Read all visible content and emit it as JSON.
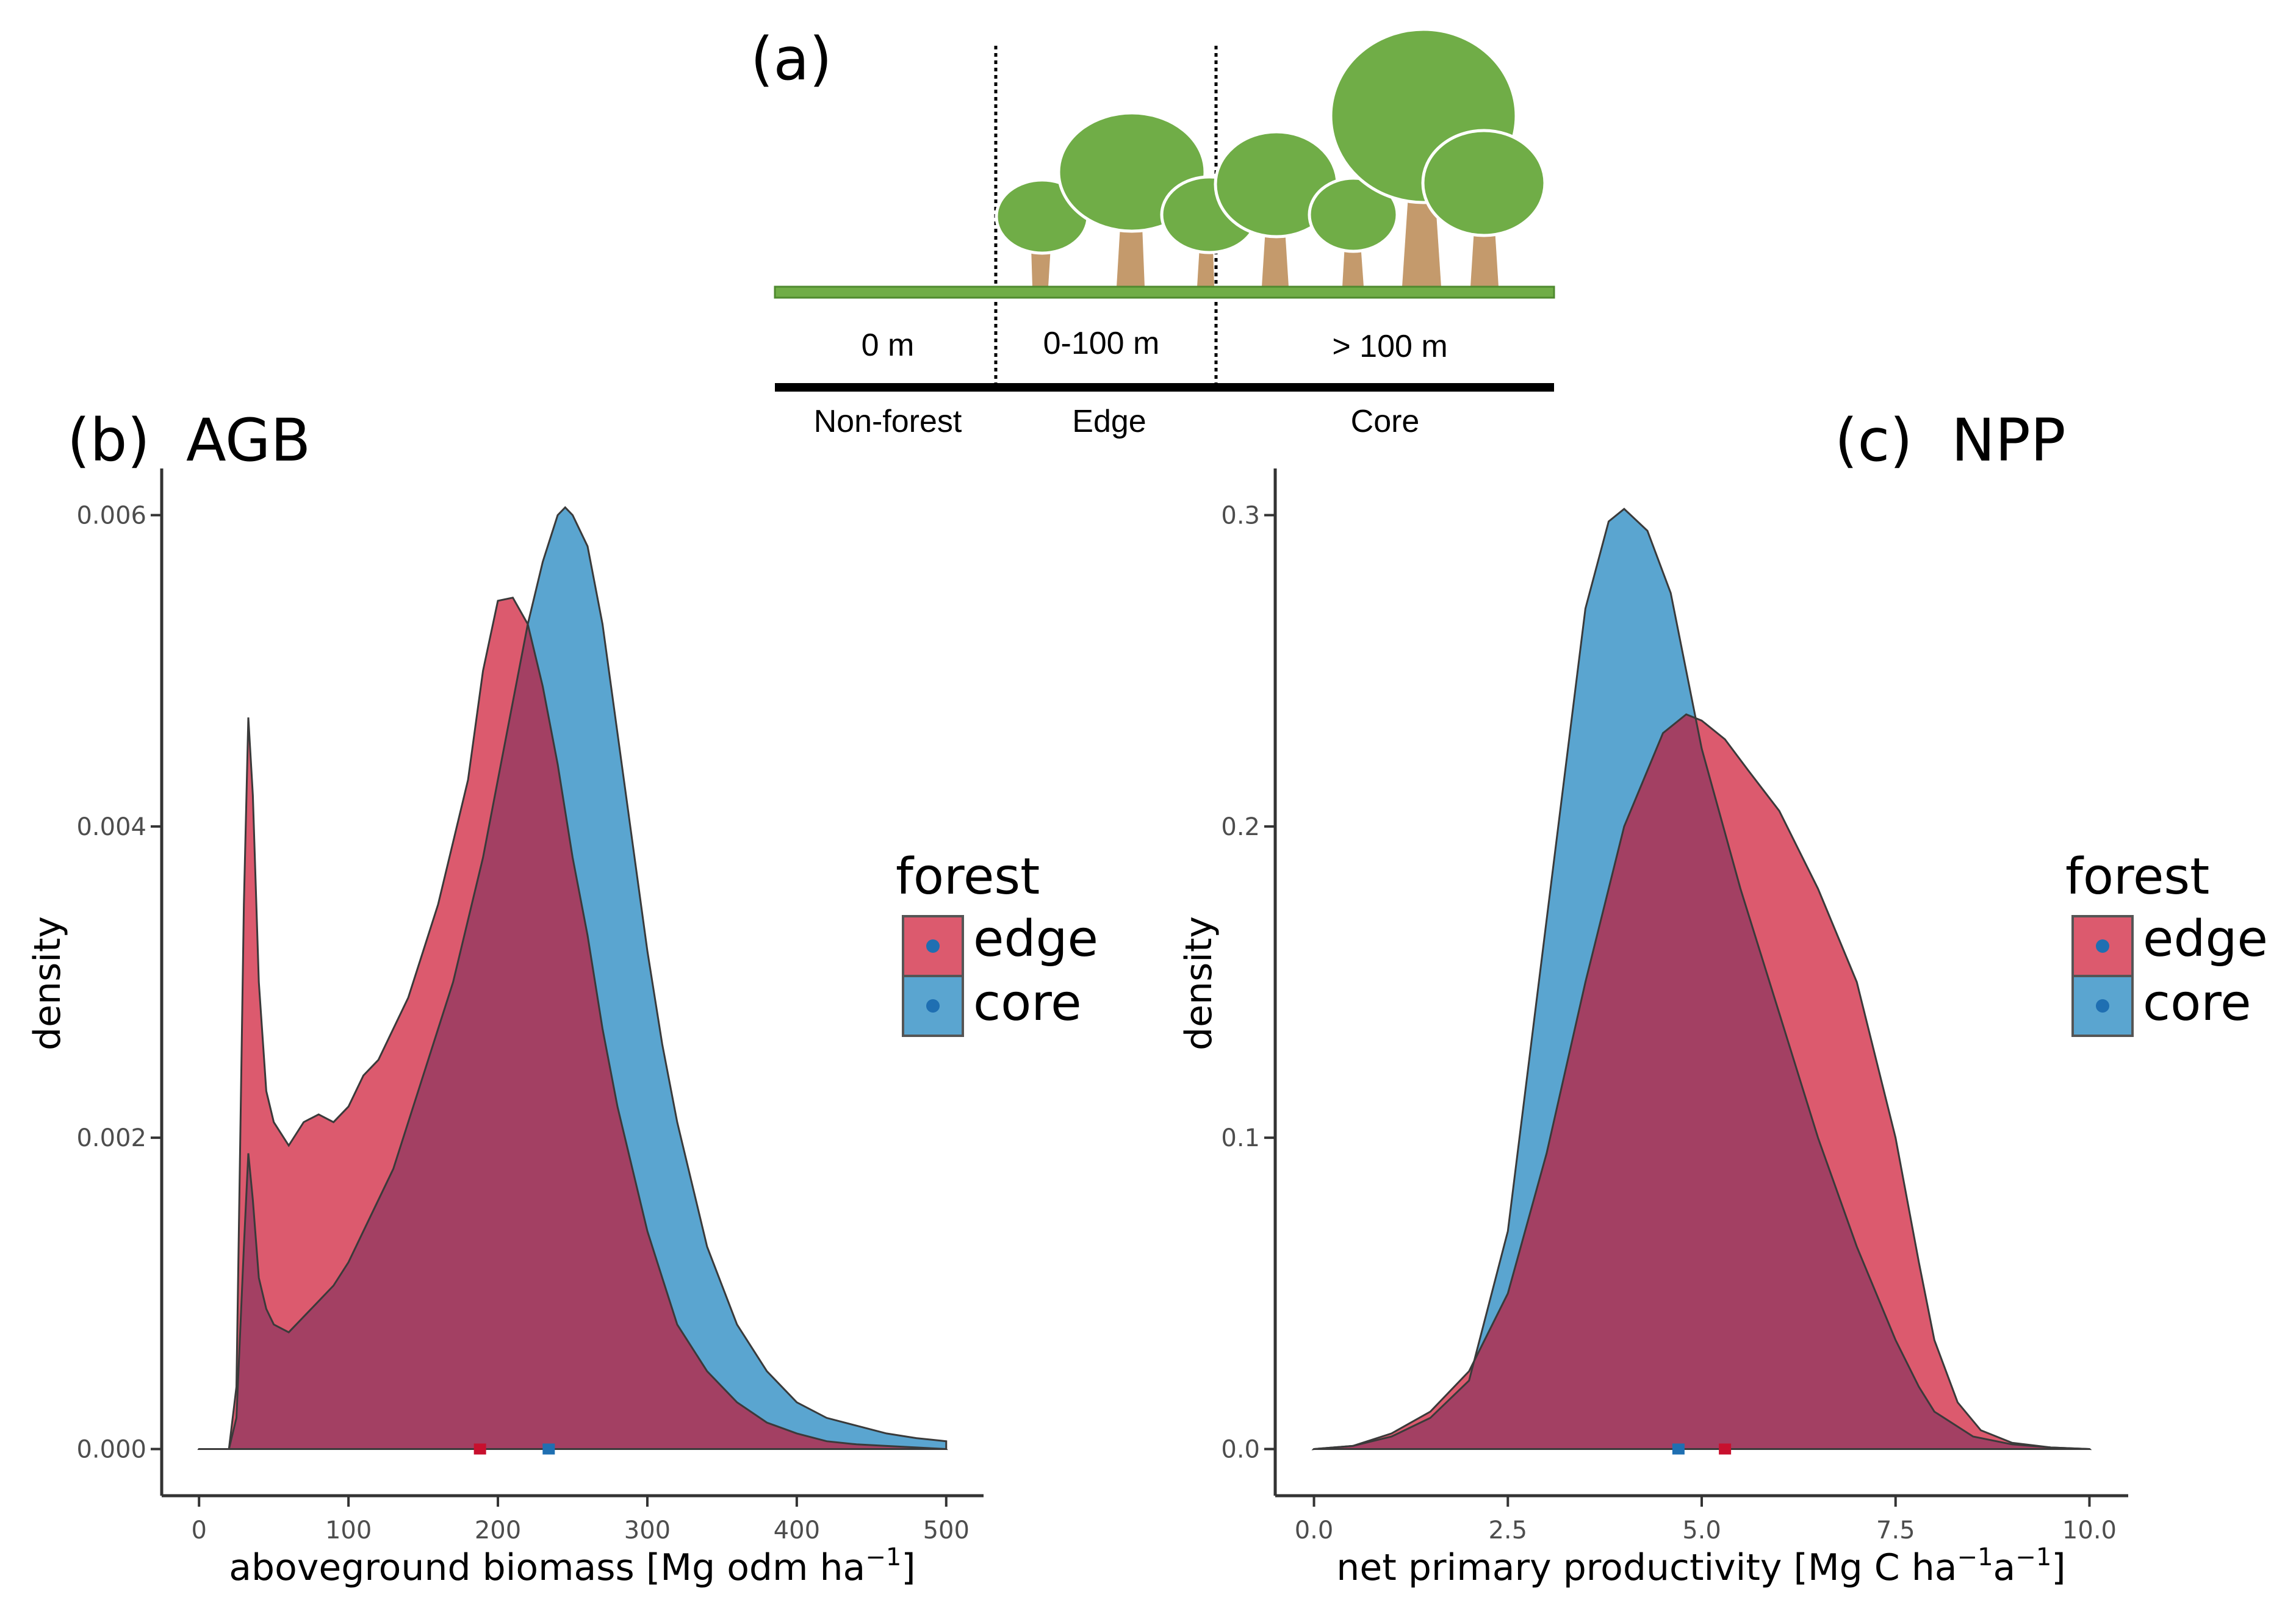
{
  "panel_a": {
    "label": "(a)",
    "zones": [
      "0 m",
      "0-100 m",
      "> 100 m"
    ],
    "classes": [
      "Non-forest",
      "Edge",
      "Core"
    ],
    "colors": {
      "tree": "#70ad47",
      "trunk": "#c49a6c",
      "ground": "#70ad47"
    }
  },
  "legend": {
    "title": "forest",
    "items": [
      {
        "label": "edge",
        "color": "#dc5a6e"
      },
      {
        "label": "core",
        "color": "#5aa5d0"
      }
    ]
  },
  "colors": {
    "edge": "#dc5a6e",
    "core": "#5aa5d0",
    "overlap": "#a34063",
    "edge_point": "#c8102e",
    "core_point": "#1f6fb2"
  },
  "chart_data": [
    {
      "type": "area",
      "panel_label": "(b)",
      "title": "AGB",
      "xlabel": "aboveground biomass [Mg odm ha",
      "xlabel_sup": "−1",
      "xlabel_end": "]",
      "ylabel": "density",
      "xlim": [
        -25,
        525
      ],
      "ylim": [
        -0.0003,
        0.0063
      ],
      "xticks": [
        0,
        100,
        200,
        300,
        400,
        500
      ],
      "xtick_labels": [
        "0",
        "100",
        "200",
        "300",
        "400",
        "500"
      ],
      "yticks": [
        0,
        0.002,
        0.004,
        0.006
      ],
      "ytick_labels": [
        "0.000",
        "0.002",
        "0.004",
        "0.006"
      ],
      "series": [
        {
          "name": "edge",
          "x": [
            0,
            20,
            25,
            30,
            33,
            36,
            40,
            45,
            50,
            60,
            70,
            80,
            90,
            100,
            110,
            120,
            130,
            140,
            150,
            160,
            170,
            180,
            190,
            200,
            210,
            220,
            230,
            240,
            250,
            260,
            270,
            280,
            290,
            300,
            310,
            320,
            340,
            360,
            380,
            400,
            420,
            440,
            460,
            480,
            500
          ],
          "values": [
            0,
            0,
            0.0004,
            0.0035,
            0.0047,
            0.0042,
            0.003,
            0.0023,
            0.0021,
            0.00195,
            0.0021,
            0.00215,
            0.0021,
            0.0022,
            0.0024,
            0.0025,
            0.0027,
            0.0029,
            0.0032,
            0.0035,
            0.0039,
            0.0043,
            0.005,
            0.00545,
            0.00547,
            0.0053,
            0.0049,
            0.0044,
            0.0038,
            0.0033,
            0.0027,
            0.0022,
            0.0018,
            0.0014,
            0.0011,
            0.0008,
            0.0005,
            0.0003,
            0.00017,
            0.0001,
            5e-05,
            3e-05,
            2e-05,
            1e-05,
            0
          ]
        },
        {
          "name": "core",
          "x": [
            0,
            20,
            25,
            30,
            33,
            36,
            40,
            45,
            50,
            60,
            70,
            80,
            90,
            100,
            110,
            120,
            130,
            140,
            150,
            160,
            170,
            180,
            190,
            200,
            210,
            220,
            230,
            240,
            245,
            250,
            260,
            270,
            280,
            290,
            300,
            310,
            320,
            330,
            340,
            360,
            380,
            400,
            420,
            440,
            460,
            480,
            500
          ],
          "values": [
            0,
            0,
            0.0002,
            0.0013,
            0.0019,
            0.0016,
            0.0011,
            0.0009,
            0.0008,
            0.00075,
            0.00085,
            0.00095,
            0.00105,
            0.0012,
            0.0014,
            0.0016,
            0.0018,
            0.0021,
            0.0024,
            0.0027,
            0.003,
            0.0034,
            0.0038,
            0.0043,
            0.0048,
            0.0053,
            0.0057,
            0.006,
            0.00605,
            0.006,
            0.0058,
            0.0053,
            0.0046,
            0.0039,
            0.0032,
            0.0026,
            0.0021,
            0.0017,
            0.0013,
            0.0008,
            0.0005,
            0.0003,
            0.0002,
            0.00015,
            0.0001,
            7e-05,
            5e-05
          ]
        }
      ],
      "rug": [
        {
          "name": "edge",
          "x": 188
        },
        {
          "name": "core",
          "x": 234
        }
      ]
    },
    {
      "type": "area",
      "panel_label": "(c)",
      "title": "NPP",
      "xlabel": "net primary productivity [Mg C ha",
      "xlabel_sup": "−1",
      "xlabel_mid": "a",
      "xlabel_sup2": "−1",
      "xlabel_end": "]",
      "ylabel": "density",
      "xlim": [
        -0.5,
        10.5
      ],
      "ylim": [
        -0.015,
        0.315
      ],
      "xticks": [
        0,
        2.5,
        5,
        7.5,
        10
      ],
      "xtick_labels": [
        "0.0",
        "2.5",
        "5.0",
        "7.5",
        "10.0"
      ],
      "yticks": [
        0,
        0.1,
        0.2,
        0.3
      ],
      "ytick_labels": [
        "0.0",
        "0.1",
        "0.2",
        "0.3"
      ],
      "series": [
        {
          "name": "edge",
          "x": [
            0,
            0.5,
            1,
            1.5,
            2,
            2.5,
            3,
            3.5,
            4,
            4.5,
            4.8,
            5,
            5.3,
            5.6,
            6,
            6.5,
            7,
            7.5,
            7.8,
            8,
            8.3,
            8.6,
            9,
            9.5,
            10
          ],
          "values": [
            0,
            0.001,
            0.005,
            0.012,
            0.025,
            0.05,
            0.095,
            0.15,
            0.2,
            0.23,
            0.236,
            0.234,
            0.228,
            0.218,
            0.205,
            0.18,
            0.15,
            0.1,
            0.06,
            0.035,
            0.015,
            0.006,
            0.002,
            0.0005,
            0
          ]
        },
        {
          "name": "core",
          "x": [
            0,
            0.5,
            1,
            1.5,
            2,
            2.5,
            3,
            3.5,
            3.8,
            4,
            4.3,
            4.6,
            5,
            5.5,
            6,
            6.5,
            7,
            7.5,
            7.8,
            8,
            8.5,
            9,
            9.5,
            10
          ],
          "values": [
            0,
            0.001,
            0.004,
            0.01,
            0.022,
            0.07,
            0.17,
            0.27,
            0.298,
            0.302,
            0.295,
            0.275,
            0.225,
            0.18,
            0.14,
            0.1,
            0.065,
            0.035,
            0.02,
            0.012,
            0.004,
            0.0015,
            0.0005,
            0
          ]
        }
      ],
      "rug": [
        {
          "name": "core",
          "x": 4.7
        },
        {
          "name": "edge",
          "x": 5.3
        }
      ]
    }
  ]
}
